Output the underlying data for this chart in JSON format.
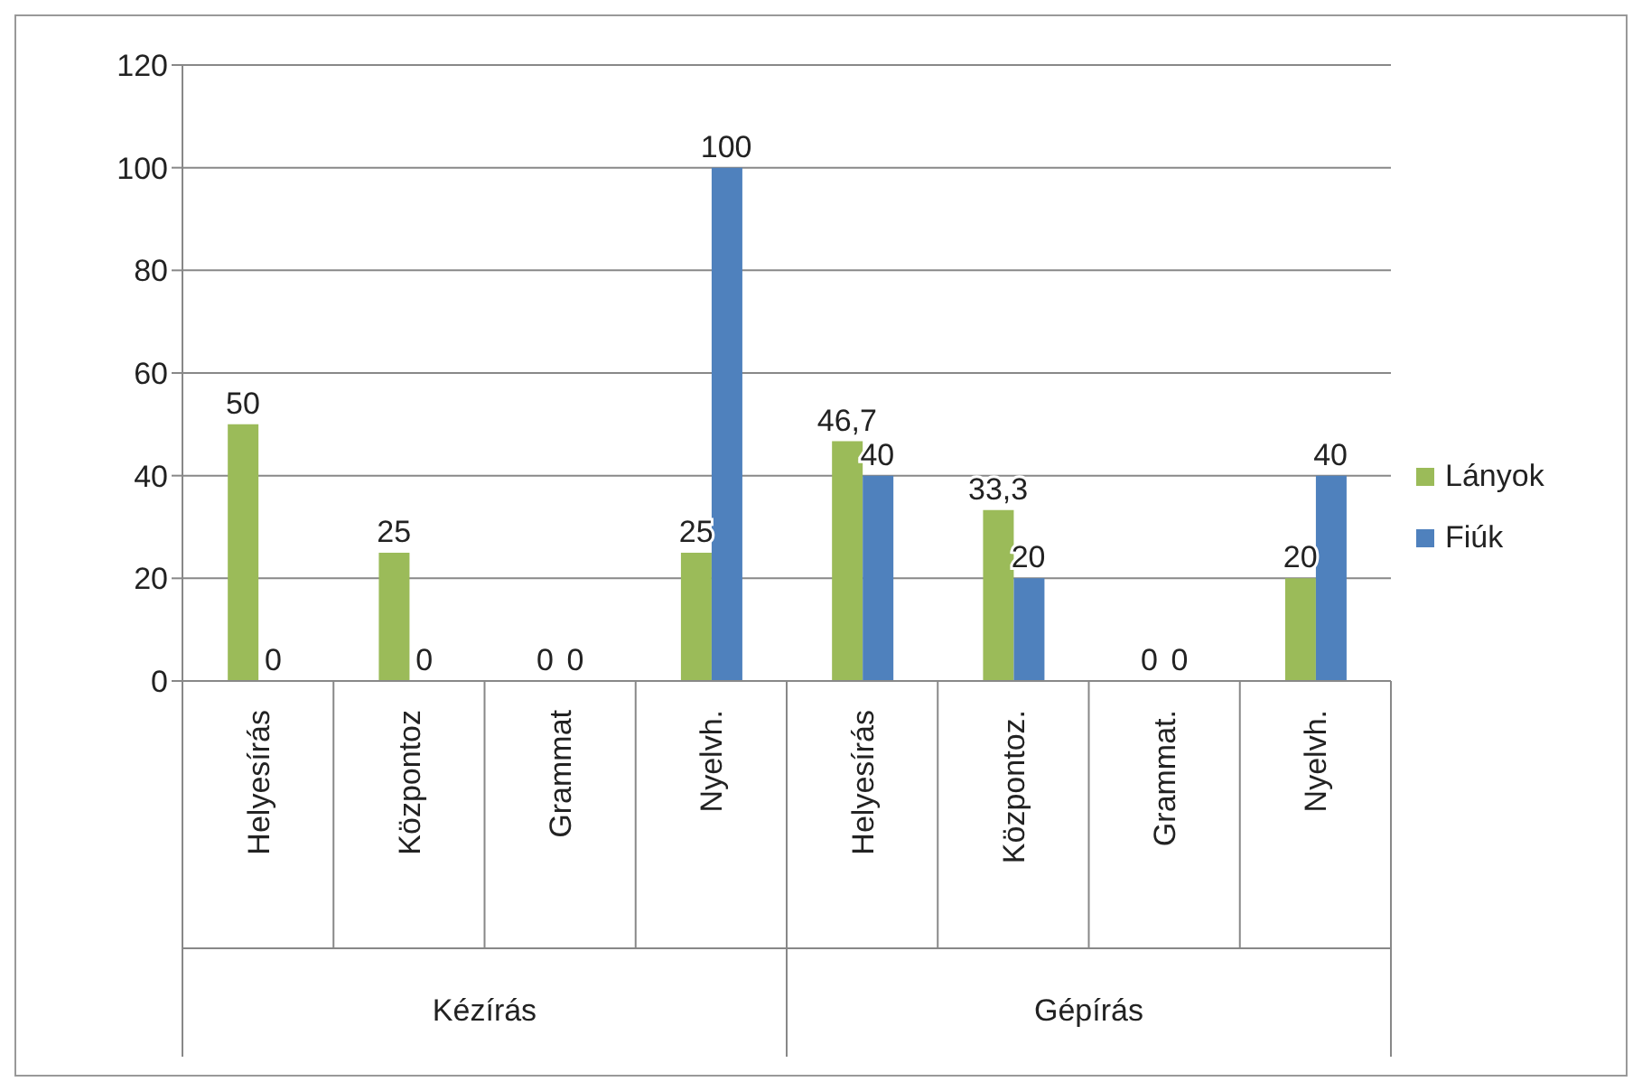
{
  "chart_data": {
    "type": "bar",
    "categories": [
      "Helyesírás",
      "Központoz",
      "Grammat",
      "Nyelvh.",
      "Helyesírás",
      "Központoz.",
      "Grammat.",
      "Nyelvh."
    ],
    "series": [
      {
        "name": "Lányok",
        "color": "#9bbb59",
        "values": [
          50,
          25,
          0,
          25,
          46.7,
          33.3,
          0,
          20
        ],
        "value_labels": [
          "50",
          "25",
          "0",
          "25",
          "46,7",
          "33,3",
          "0",
          "20"
        ]
      },
      {
        "name": "Fiúk",
        "color": "#4f81bd",
        "values": [
          0,
          0,
          0,
          100,
          40,
          20,
          0,
          40
        ],
        "value_labels": [
          "0",
          "0",
          "0",
          "100",
          "40",
          "20",
          "0",
          "40"
        ]
      }
    ],
    "annotations": [
      "Kézírás",
      "Gépírás"
    ],
    "ylim": [
      0,
      120
    ],
    "yticks": [
      0,
      20,
      40,
      60,
      80,
      100,
      120
    ],
    "grid": "y",
    "legend": "right"
  }
}
